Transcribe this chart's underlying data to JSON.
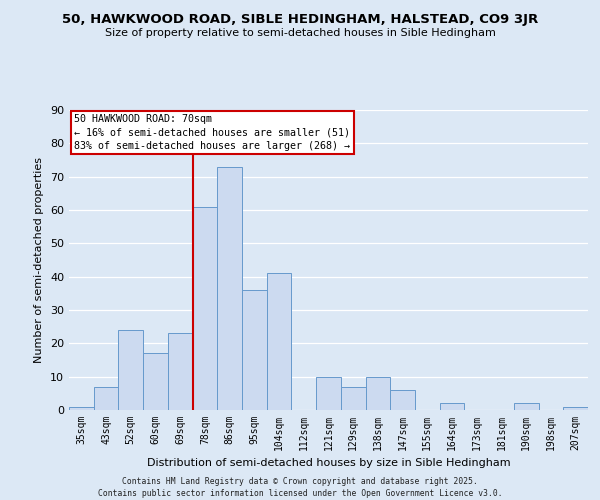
{
  "title": "50, HAWKWOOD ROAD, SIBLE HEDINGHAM, HALSTEAD, CO9 3JR",
  "subtitle": "Size of property relative to semi-detached houses in Sible Hedingham",
  "xlabel": "Distribution of semi-detached houses by size in Sible Hedingham",
  "ylabel": "Number of semi-detached properties",
  "bin_labels": [
    "35sqm",
    "43sqm",
    "52sqm",
    "60sqm",
    "69sqm",
    "78sqm",
    "86sqm",
    "95sqm",
    "104sqm",
    "112sqm",
    "121sqm",
    "129sqm",
    "138sqm",
    "147sqm",
    "155sqm",
    "164sqm",
    "173sqm",
    "181sqm",
    "190sqm",
    "198sqm",
    "207sqm"
  ],
  "bin_values": [
    1,
    7,
    24,
    17,
    23,
    61,
    73,
    36,
    41,
    0,
    10,
    7,
    10,
    6,
    0,
    2,
    0,
    0,
    2,
    0,
    1
  ],
  "bar_color": "#ccdaf0",
  "bar_edge_color": "#6699cc",
  "vline_x_index": 4,
  "vline_color": "#cc0000",
  "annotation_title": "50 HAWKWOOD ROAD: 70sqm",
  "annotation_line1": "← 16% of semi-detached houses are smaller (51)",
  "annotation_line2": "83% of semi-detached houses are larger (268) →",
  "ylim": [
    0,
    90
  ],
  "yticks": [
    0,
    10,
    20,
    30,
    40,
    50,
    60,
    70,
    80,
    90
  ],
  "background_color": "#dce8f5",
  "grid_color": "#ffffff",
  "footer_line1": "Contains HM Land Registry data © Crown copyright and database right 2025.",
  "footer_line2": "Contains public sector information licensed under the Open Government Licence v3.0."
}
